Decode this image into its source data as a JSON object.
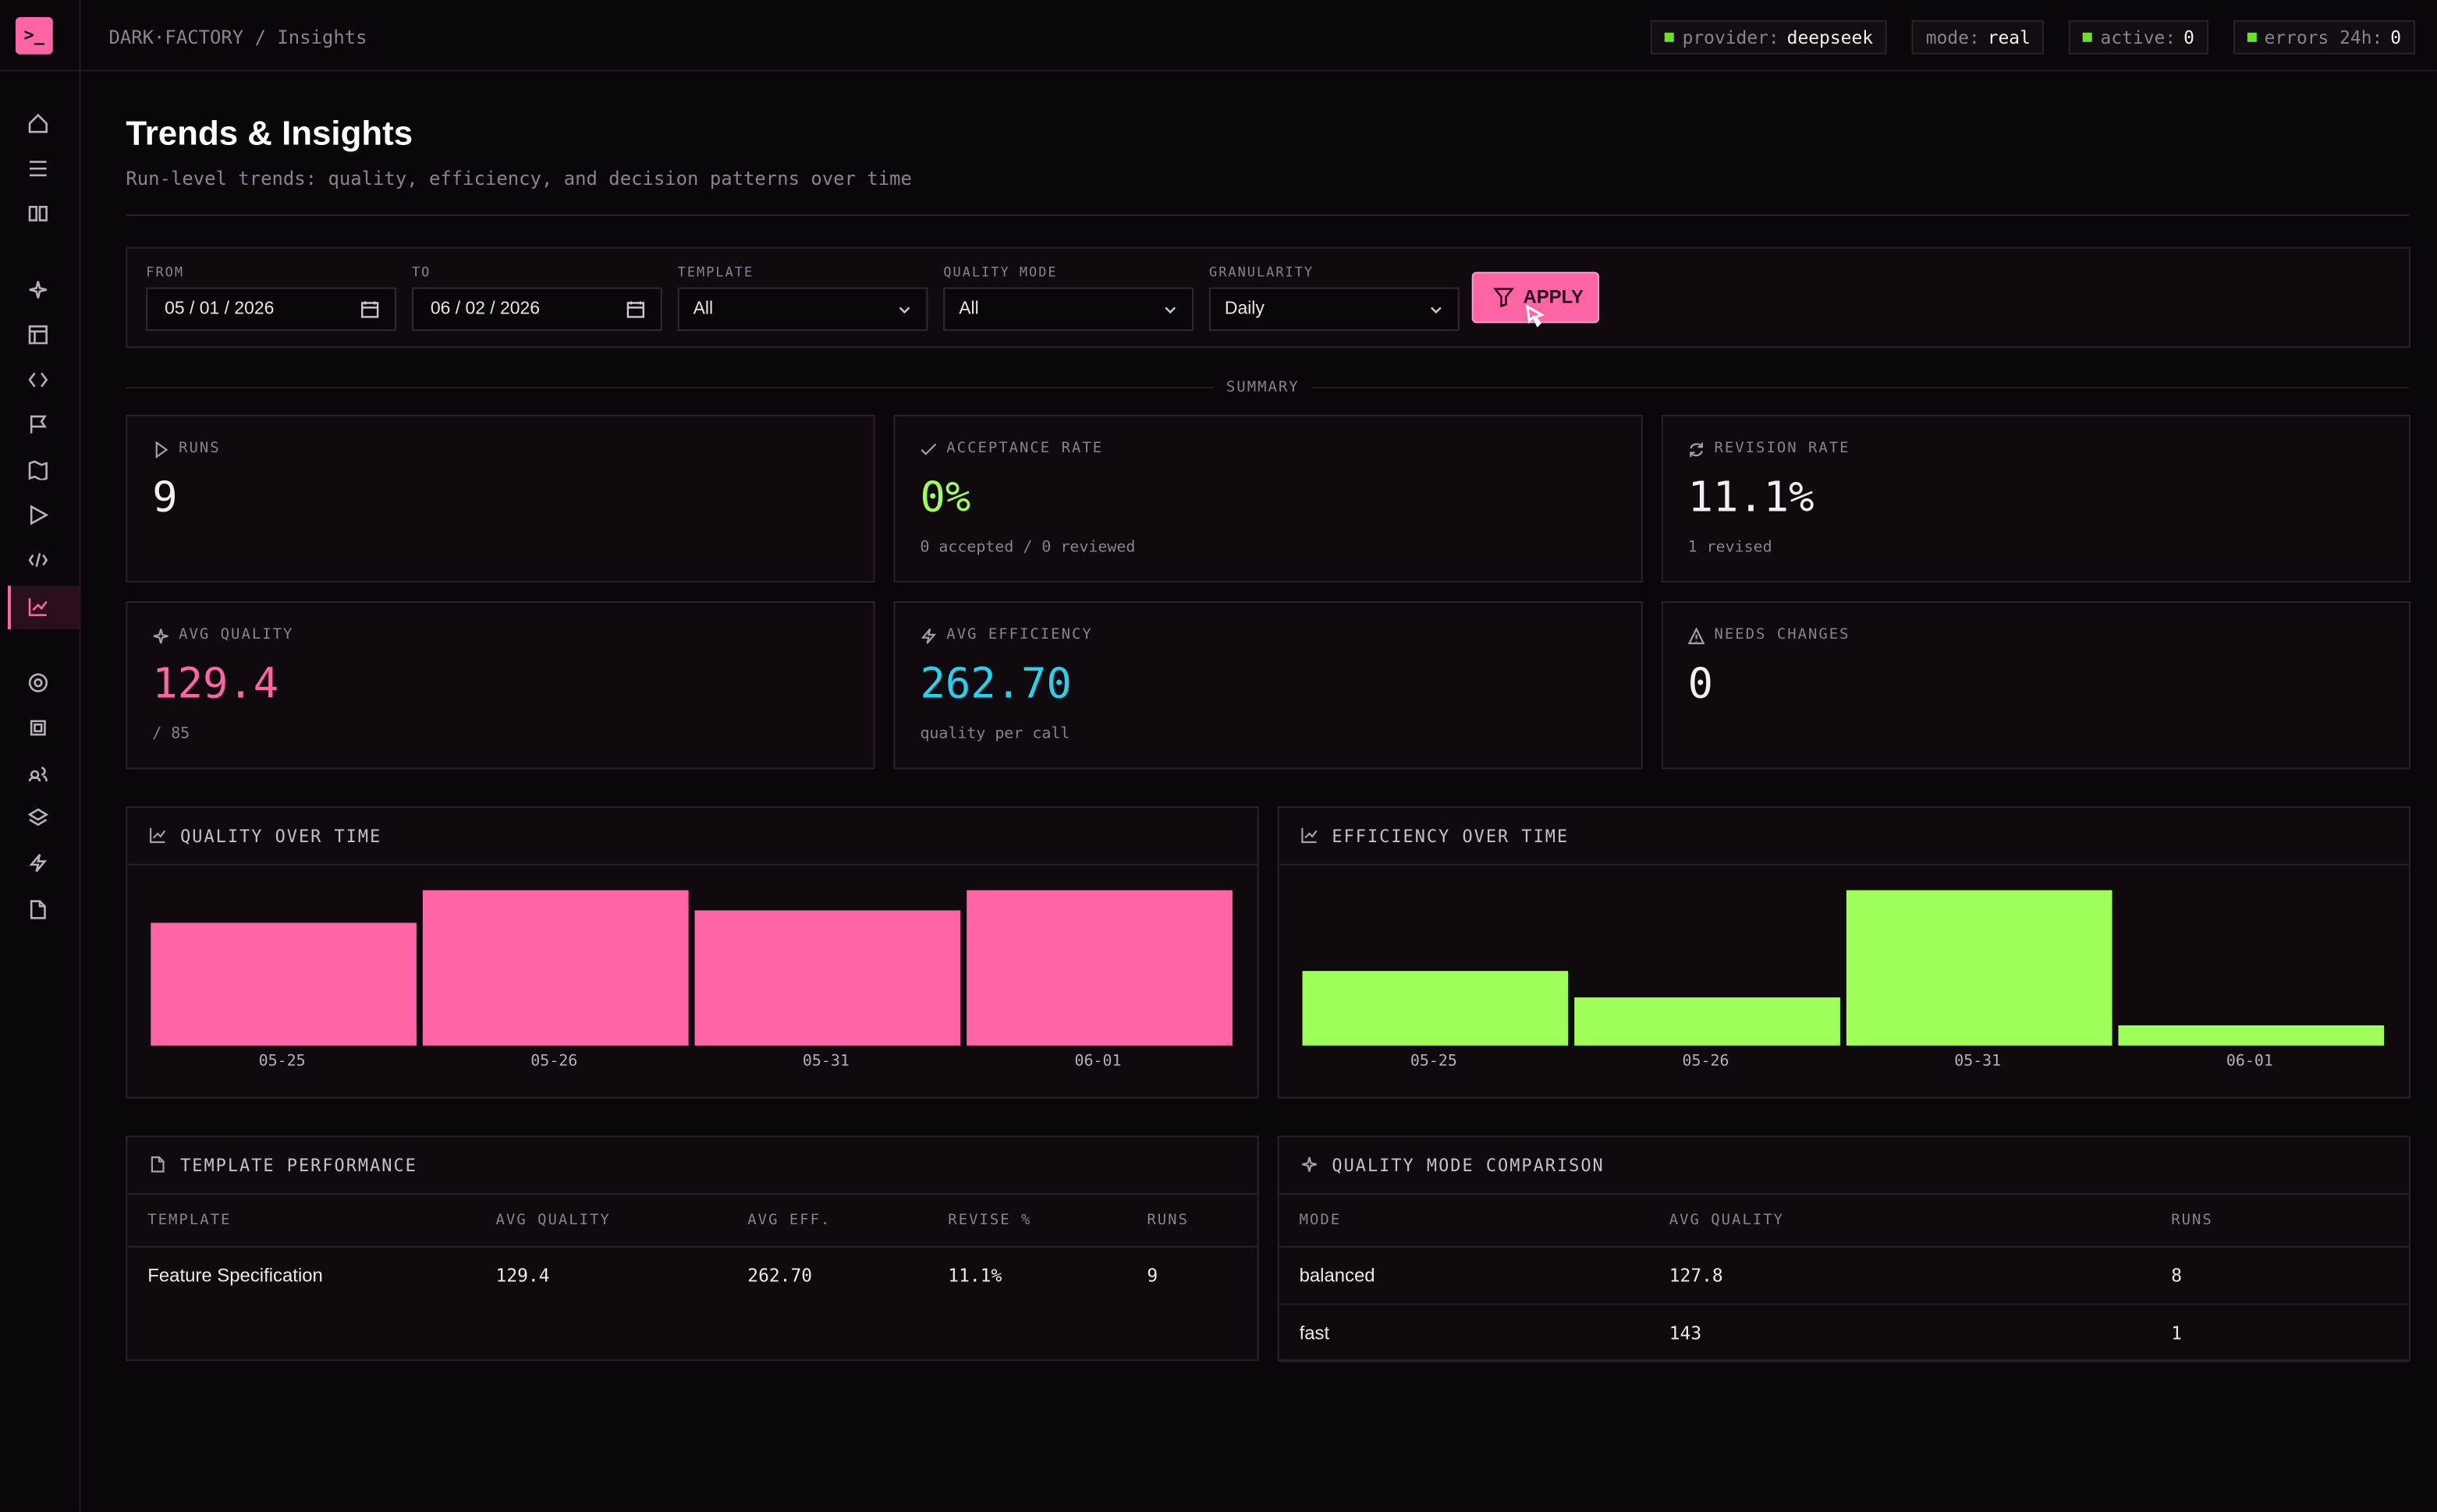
{
  "breadcrumb": "DARK·FACTORY / Insights",
  "status": [
    {
      "label": "provider:",
      "value": "deepseek",
      "dot": true
    },
    {
      "label": "mode:",
      "value": "real",
      "dot": false
    },
    {
      "label": "active:",
      "value": "0",
      "dot": true
    },
    {
      "label": "errors 24h:",
      "value": "0",
      "dot": true
    }
  ],
  "page": {
    "title": "Trends & Insights",
    "subtitle": "Run-level trends: quality, efficiency, and decision patterns over time"
  },
  "filters": [
    {
      "label": "FROM",
      "value": "05 / 01 / 2026",
      "kind": "date"
    },
    {
      "label": "TO",
      "value": "06 / 02 / 2026",
      "kind": "date"
    },
    {
      "label": "TEMPLATE",
      "value": "All",
      "kind": "select"
    },
    {
      "label": "QUALITY MODE",
      "value": "All",
      "kind": "select"
    },
    {
      "label": "GRANULARITY",
      "value": "Daily",
      "kind": "select"
    }
  ],
  "apply": "APPLY",
  "summary": {
    "title": "SUMMARY",
    "cards": [
      {
        "label": "RUNS",
        "value": "9",
        "color": "#f2eef2"
      },
      {
        "label": "ACCEPTANCE RATE",
        "value": "0%",
        "note": "0 accepted / 0 reviewed",
        "color": "#9dff57"
      },
      {
        "label": "REVISION RATE",
        "value": "11.1%",
        "note": "1 revised",
        "color": "#f2eef2"
      },
      {
        "label": "AVG QUALITY",
        "value": "129.4",
        "note": "/ 85",
        "color": "#ff64a5"
      },
      {
        "label": "AVG EFFICIENCY",
        "value": "262.70",
        "note": "quality per call",
        "color": "#22d3ee"
      },
      {
        "label": "NEEDS CHANGES",
        "value": "0",
        "color": "#f2eef2"
      }
    ]
  },
  "chart_data": [
    {
      "type": "bar",
      "title": "QUALITY OVER TIME",
      "categories": [
        "05-25",
        "05-26",
        "05-31",
        "06-01"
      ],
      "values": [
        113,
        143,
        124,
        143
      ],
      "color": "#ff64a5"
    },
    {
      "type": "bar",
      "title": "EFFICIENCY OVER TIME",
      "categories": [
        "05-25",
        "05-26",
        "05-31",
        "06-01"
      ],
      "values": [
        240,
        155,
        500,
        65
      ],
      "color": "#9dff57"
    }
  ],
  "tables": [
    {
      "title": "TEMPLATE PERFORMANCE",
      "columns": [
        "TEMPLATE",
        "AVG QUALITY",
        "AVG EFF.",
        "REVISE %",
        "RUNS"
      ],
      "rows": [
        [
          "Feature Specification",
          "129.4",
          "262.70",
          "11.1%",
          "9"
        ]
      ]
    },
    {
      "title": "QUALITY MODE COMPARISON",
      "columns": [
        "MODE",
        "AVG QUALITY",
        "RUNS"
      ],
      "rows": [
        [
          "balanced",
          "127.8",
          "8"
        ],
        [
          "fast",
          "143",
          "1"
        ]
      ]
    }
  ]
}
